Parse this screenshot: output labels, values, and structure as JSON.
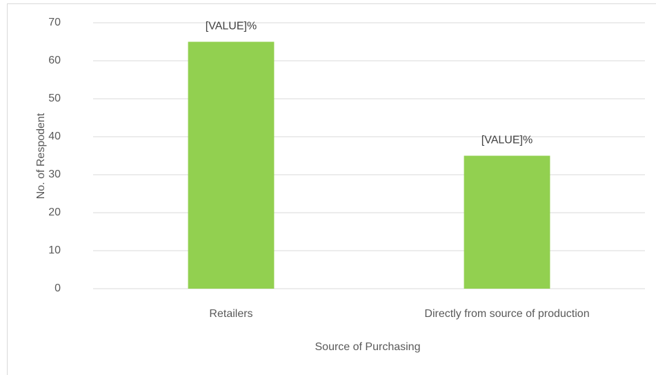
{
  "chart_data": {
    "type": "bar",
    "categories": [
      "Retailers",
      "Directly from source of production"
    ],
    "values": [
      65,
      35
    ],
    "value_labels": [
      "[VALUE]%",
      "[VALUE]%"
    ],
    "color": "#92d050",
    "xlabel": "Source of Purchasing",
    "ylabel": "No. of Respodent",
    "ylim": [
      0,
      70
    ],
    "yticks": [
      0,
      10,
      20,
      30,
      40,
      50,
      60,
      70
    ],
    "grid": true
  }
}
